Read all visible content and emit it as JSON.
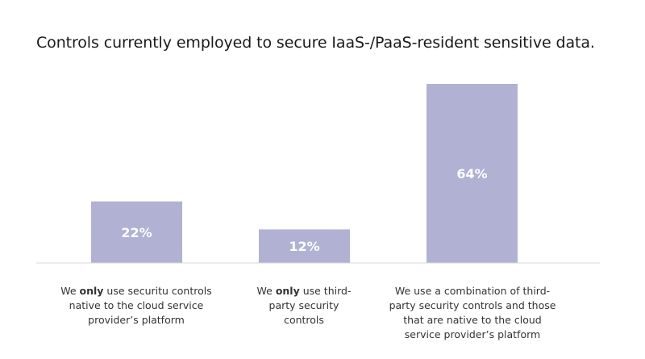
{
  "chart_data": {
    "type": "bar",
    "title": "Controls currently employed to secure IaaS-/PaaS-resident sensitive data.",
    "xlabel": "",
    "ylabel": "",
    "ylim": [
      0,
      64
    ],
    "bar_color": "#b1b1d3",
    "label_color": "#ffffff",
    "axis_color": "#d9d9d9",
    "grid": false,
    "categories": [
      {
        "before": "We ",
        "bold": "only",
        "after": " use securitu controls native to the cloud service provider’s platform"
      },
      {
        "before": "We ",
        "bold": "only",
        "after": " use third-party security controls"
      },
      {
        "before": "",
        "bold": "",
        "after": "We use a combination of third-party security controls and those that are native to the cloud service provider’s platform"
      }
    ],
    "values": [
      22,
      12,
      64
    ],
    "data_labels": [
      "22%",
      "12%",
      "64%"
    ]
  }
}
